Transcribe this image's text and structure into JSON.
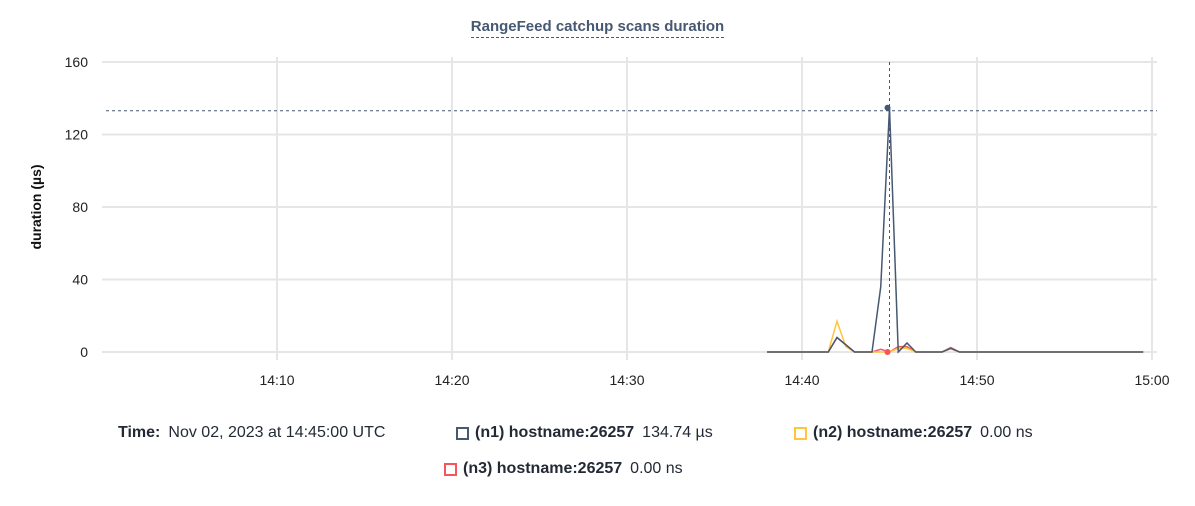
{
  "chart_data": {
    "type": "line",
    "title": "RangeFeed catchup scans duration",
    "ylabel": "duration (µs)",
    "xlabel": "",
    "xlim": [
      "14:00",
      "15:00"
    ],
    "ylim": [
      0,
      160
    ],
    "yticks": [
      "0",
      "40",
      "80",
      "120",
      "160"
    ],
    "xticks": [
      "14:10",
      "14:20",
      "14:30",
      "14:40",
      "14:50",
      "15:00"
    ],
    "grid": true,
    "x": [
      "14:38:00",
      "14:38:30",
      "14:39:00",
      "14:39:30",
      "14:40:00",
      "14:40:30",
      "14:41:00",
      "14:41:30",
      "14:42:00",
      "14:42:30",
      "14:43:00",
      "14:43:30",
      "14:44:00",
      "14:44:30",
      "14:45:00",
      "14:45:30",
      "14:46:00",
      "14:46:30",
      "14:47:00",
      "14:47:30",
      "14:48:00",
      "14:48:30",
      "14:49:00",
      "14:49:30",
      "14:50:00",
      "14:51:00",
      "14:52:00",
      "14:53:00",
      "14:54:00",
      "14:55:00",
      "14:56:00",
      "14:57:00",
      "14:58:00",
      "14:59:00",
      "14:59:30"
    ],
    "series": [
      {
        "name": "(n1) hostname:26257",
        "color": "#475872",
        "values": [
          0,
          0,
          0,
          0,
          0,
          0,
          0,
          0,
          8,
          4,
          0,
          0,
          0,
          36,
          134.74,
          0,
          5,
          0,
          0,
          0,
          0,
          2,
          0,
          0,
          0,
          0,
          0,
          0,
          0,
          0,
          0,
          0,
          0,
          0,
          0
        ]
      },
      {
        "name": "(n2) hostname:26257",
        "color": "#ffc53d",
        "values": [
          0,
          0,
          0,
          0,
          0,
          0,
          0,
          0,
          17,
          3,
          0,
          0,
          0,
          0,
          0,
          2,
          2,
          0,
          0,
          0,
          0,
          2,
          0,
          0,
          0,
          0,
          0,
          0,
          0,
          0,
          0,
          0,
          0,
          0,
          0
        ]
      },
      {
        "name": "(n3) hostname:26257",
        "color": "#f5555d",
        "values": [
          0,
          0,
          0,
          0,
          0,
          0,
          0,
          0,
          8,
          4,
          0,
          0,
          0,
          1.5,
          0,
          3,
          3,
          0,
          0,
          0,
          0,
          2.5,
          0,
          0,
          0,
          0,
          0,
          0,
          0,
          0,
          0,
          0,
          0,
          0,
          0
        ]
      }
    ],
    "hover": {
      "time_label": "Time:",
      "time": "Nov 02, 2023 at 14:45:00 UTC",
      "x": "14:45:00",
      "values": [
        "134.74 µs",
        "0.00 ns",
        "0.00 ns"
      ]
    }
  }
}
